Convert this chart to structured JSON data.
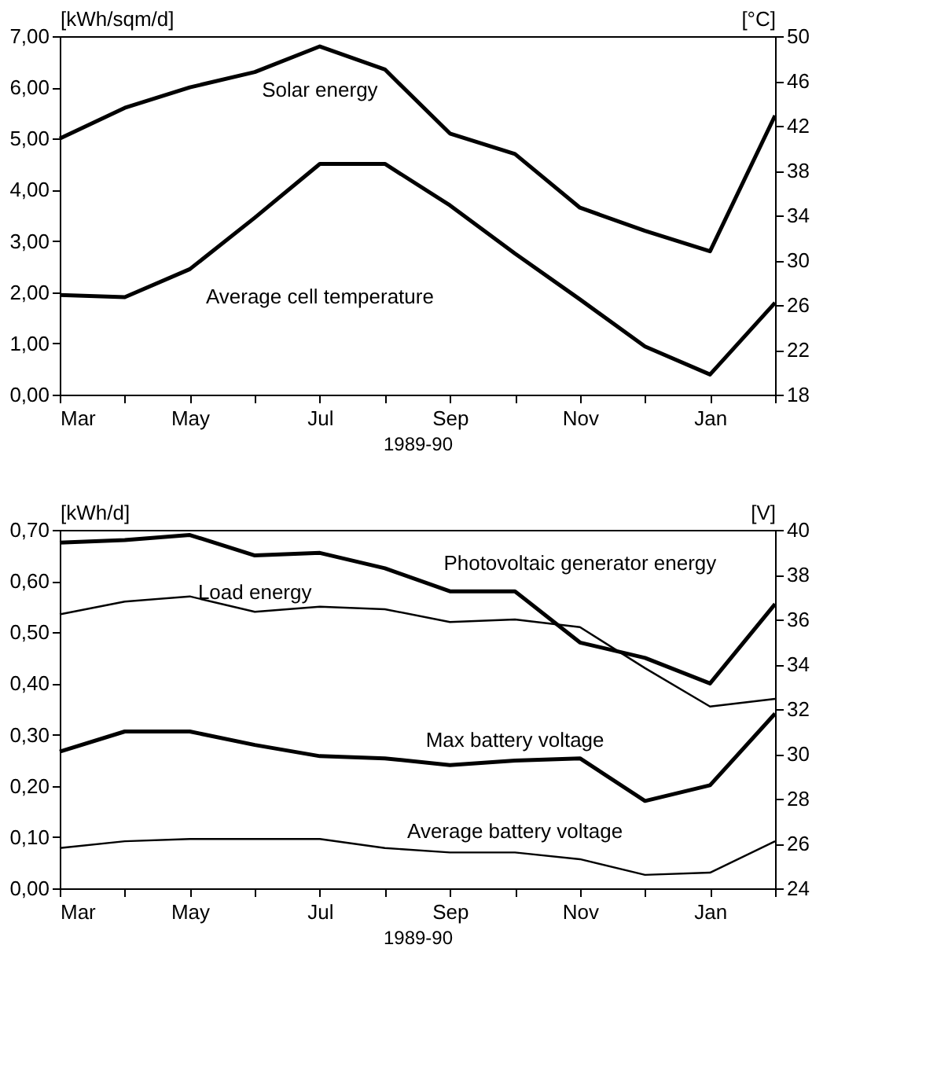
{
  "chart_data": [
    {
      "type": "line",
      "categories": [
        "Mar",
        null,
        "May",
        null,
        "Jul",
        null,
        "Sep",
        null,
        "Nov",
        null,
        "Jan",
        null
      ],
      "xlabel": "1989-90",
      "ylabel": "[kWh/sqm/d]",
      "y2label": "[°C]",
      "ylim": [
        0,
        7
      ],
      "yticks": [
        {
          "value": 0,
          "label": "0,00"
        },
        {
          "value": 1,
          "label": "1,00"
        },
        {
          "value": 2,
          "label": "2,00"
        },
        {
          "value": 3,
          "label": "3,00"
        },
        {
          "value": 4,
          "label": "4,00"
        },
        {
          "value": 5,
          "label": "5,00"
        },
        {
          "value": 6,
          "label": "6,00"
        },
        {
          "value": 7,
          "label": "7,00"
        }
      ],
      "y2lim": [
        18,
        50
      ],
      "y2ticks": [
        18,
        22,
        26,
        30,
        34,
        38,
        42,
        46,
        50
      ],
      "grid": false,
      "legend": false,
      "marker": "none",
      "line_style": "solid",
      "series": [
        {
          "name": "Solar energy",
          "color": "#000000",
          "values": [
            5.0,
            5.6,
            6.0,
            6.3,
            6.8,
            6.35,
            5.1,
            4.7,
            3.65,
            3.2,
            2.8,
            5.45
          ]
        },
        {
          "name": "Average cell temperature",
          "color": "#000000",
          "axis": "y2",
          "values": [
            26.9,
            26.7,
            29.2,
            33.8,
            38.6,
            38.6,
            34.9,
            30.6,
            26.5,
            22.3,
            19.8,
            26.2
          ]
        }
      ]
    },
    {
      "type": "line",
      "categories": [
        "Mar",
        null,
        "May",
        null,
        "Jul",
        null,
        "Sep",
        null,
        "Nov",
        null,
        "Jan",
        null
      ],
      "xlabel": "1989-90",
      "ylabel": "[kWh/d]",
      "y2label": "[V]",
      "ylim": [
        0,
        0.7
      ],
      "yticks": [
        {
          "value": 0,
          "label": "0,00"
        },
        {
          "value": 0.1,
          "label": "0,10"
        },
        {
          "value": 0.2,
          "label": "0,20"
        },
        {
          "value": 0.3,
          "label": "0,30"
        },
        {
          "value": 0.4,
          "label": "0,40"
        },
        {
          "value": 0.5,
          "label": "0,50"
        },
        {
          "value": 0.6,
          "label": "0,60"
        },
        {
          "value": 0.7,
          "label": "0,70"
        }
      ],
      "y2lim": [
        24,
        40
      ],
      "y2ticks": [
        24,
        26,
        28,
        30,
        32,
        34,
        36,
        38,
        40
      ],
      "grid": false,
      "legend": false,
      "marker": "none",
      "line_style": "solid",
      "series": [
        {
          "name": "Photovoltaic generator energy",
          "color": "#000000",
          "values": [
            0.675,
            0.68,
            0.69,
            0.65,
            0.655,
            0.625,
            0.58,
            0.58,
            0.48,
            0.45,
            0.4,
            0.555
          ]
        },
        {
          "name": "Load energy",
          "color": "#000000",
          "values": [
            0.535,
            0.56,
            0.57,
            0.54,
            0.55,
            0.545,
            0.52,
            0.525,
            0.51,
            0.43,
            0.355,
            0.37
          ]
        },
        {
          "name": "Max battery voltage",
          "color": "#000000",
          "axis": "y2",
          "values": [
            30.1,
            31.0,
            31.0,
            30.4,
            29.9,
            29.8,
            29.5,
            29.7,
            29.8,
            27.9,
            28.6,
            31.8
          ]
        },
        {
          "name": "Average battery voltage",
          "color": "#000000",
          "axis": "y2",
          "values": [
            25.8,
            26.1,
            26.2,
            26.2,
            26.2,
            25.8,
            25.6,
            25.6,
            25.3,
            24.6,
            24.7,
            26.1
          ]
        }
      ]
    }
  ]
}
